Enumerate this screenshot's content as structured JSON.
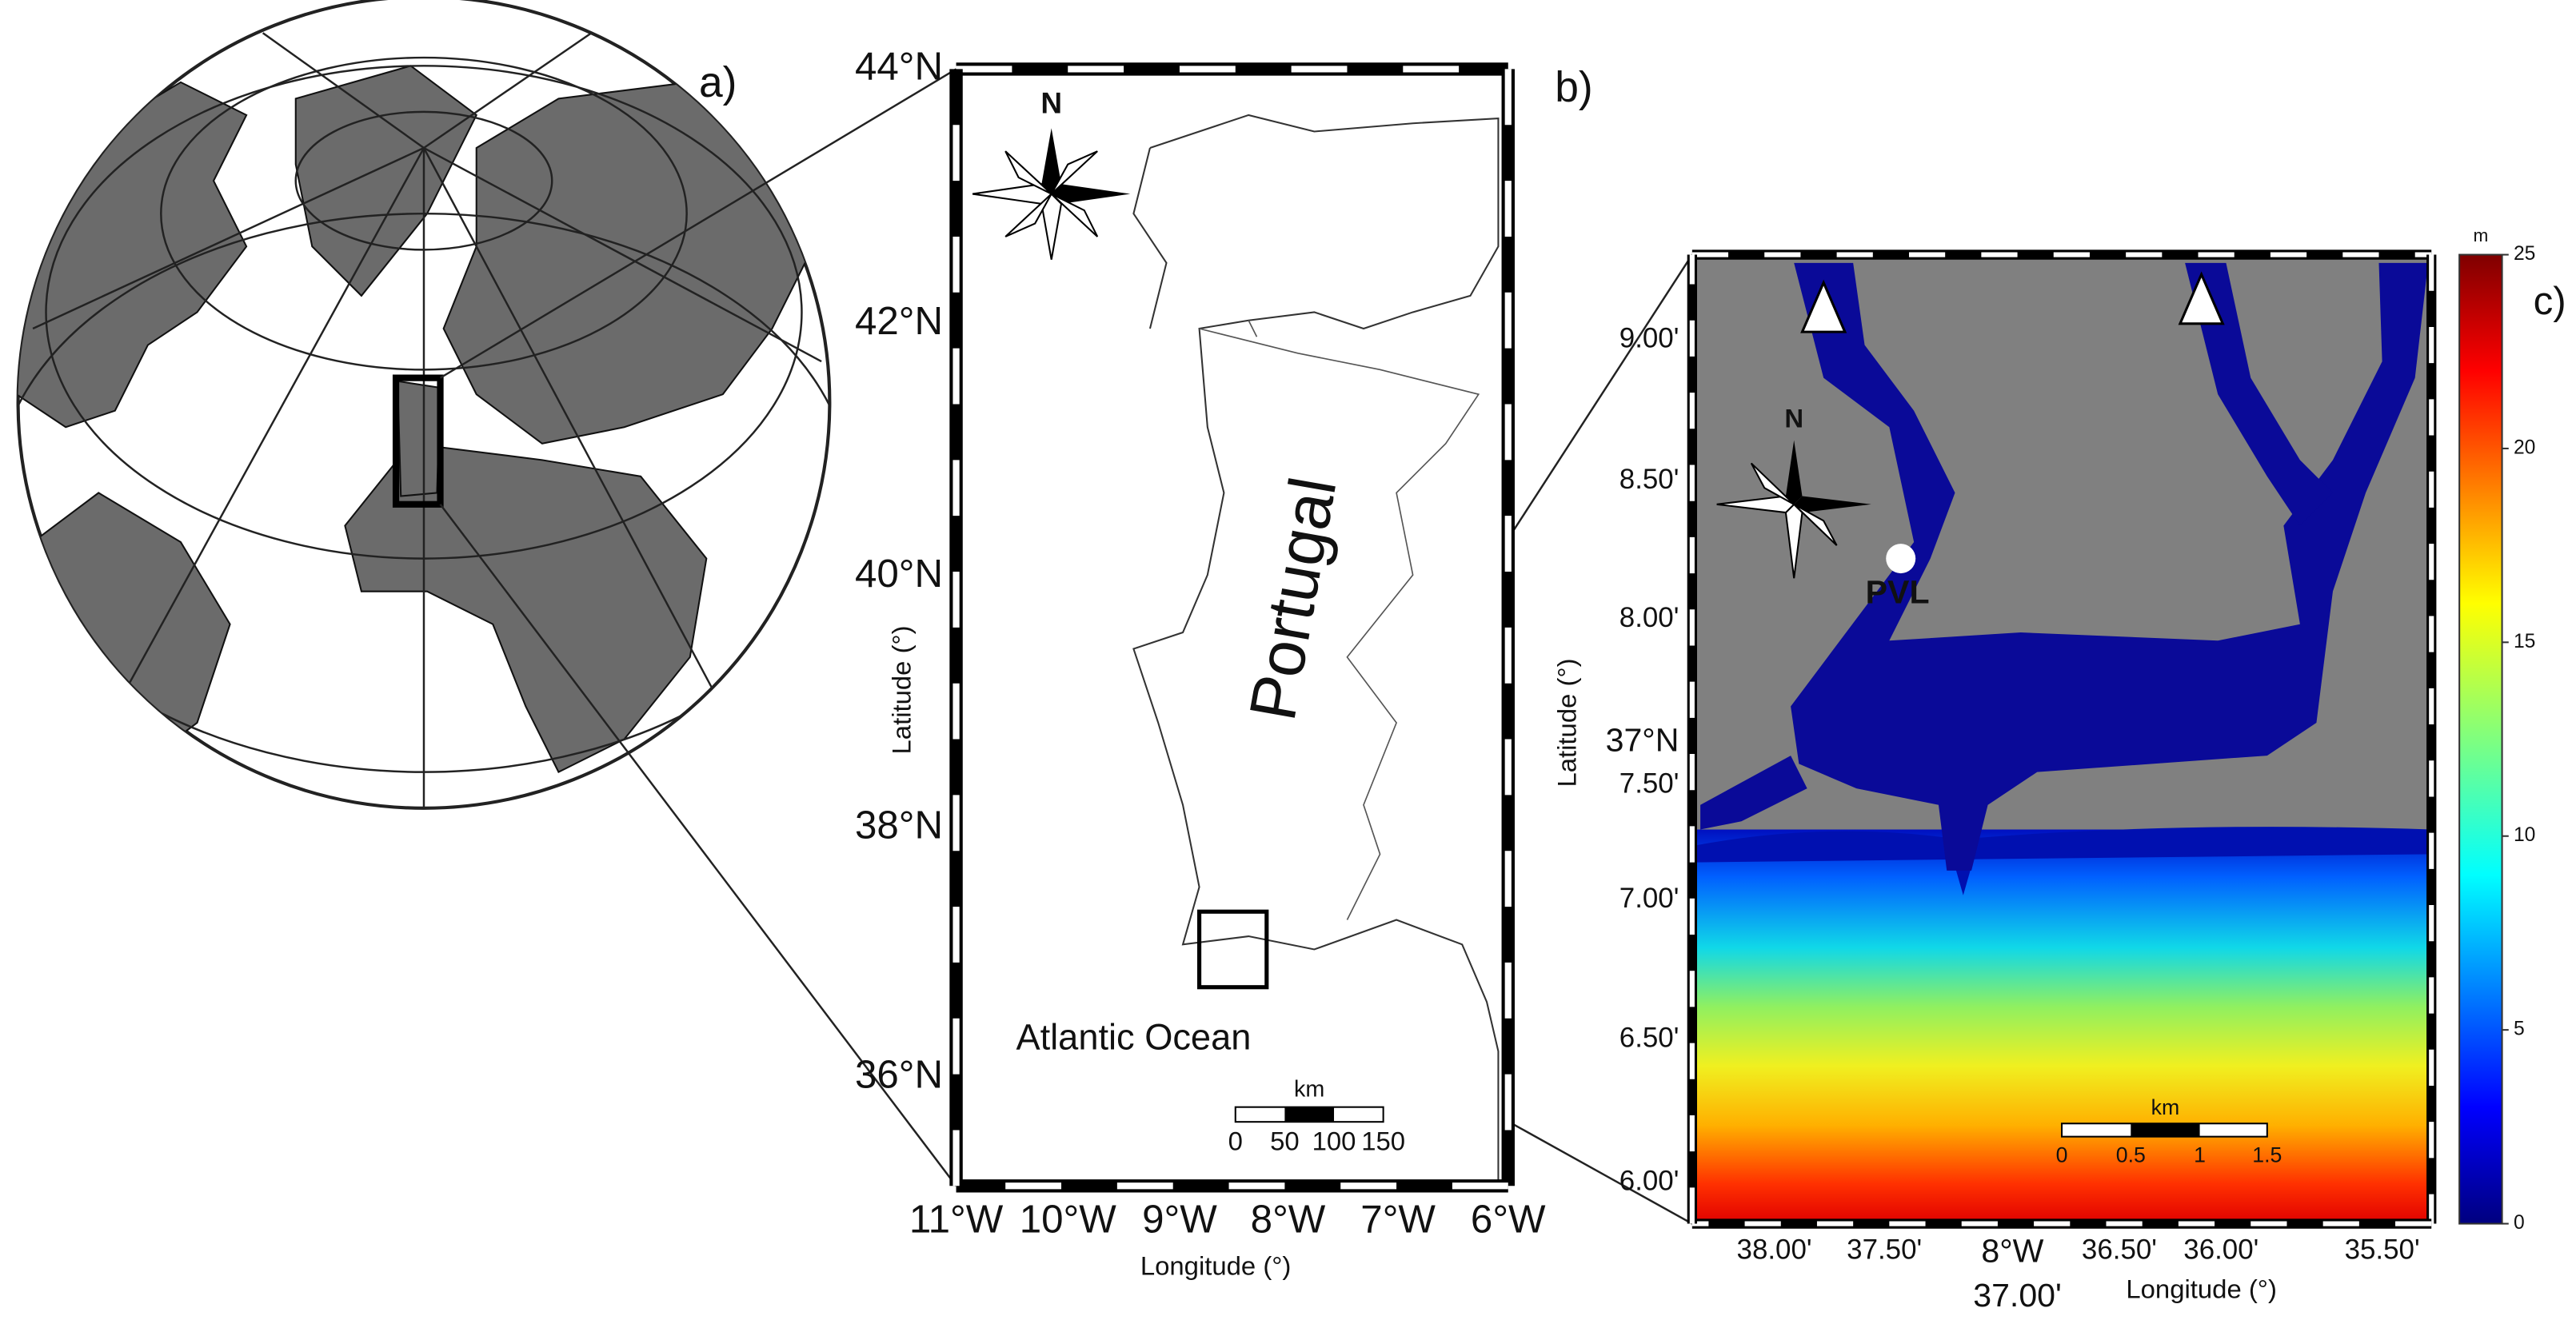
{
  "panel_a": {
    "label": "a)"
  },
  "panel_b": {
    "label": "b)",
    "yticks": [
      "44°N",
      "42°N",
      "40°N",
      "38°N",
      "36°N"
    ],
    "xticks": [
      "11°W",
      "10°W",
      "9°W",
      "8°W",
      "7°W",
      "6°W"
    ],
    "ylabel": "Latitude (°)",
    "xlabel": "Longitude (°)",
    "country": "Portugal",
    "ocean": "Atlantic Ocean",
    "compass": "N",
    "scale_bar": {
      "unit": "km",
      "ticks": [
        "0",
        "50",
        "100",
        "150"
      ]
    }
  },
  "panel_c": {
    "label": "c)",
    "yticks": [
      "9.00'",
      "8.50'",
      "8.00'",
      "7.50'",
      "7.00'",
      "6.50'",
      "6.00'"
    ],
    "lat_center": "37°N",
    "xticks": [
      "38.00'",
      "37.50'",
      "36.50'",
      "36.00'",
      "35.50'"
    ],
    "lon_center": "8°W",
    "lon_center_minutes": "37.00'",
    "ylabel": "Latitude (°)",
    "xlabel": "Longitude (°)",
    "station": "PVL",
    "compass": "N",
    "scale_bar": {
      "unit": "km",
      "ticks": [
        "0",
        "0.5",
        "1",
        "1.5"
      ]
    },
    "colorbar": {
      "unit": "m",
      "lim": [
        0,
        25
      ],
      "ticks": [
        0,
        5,
        10,
        15,
        20,
        25
      ]
    }
  }
}
